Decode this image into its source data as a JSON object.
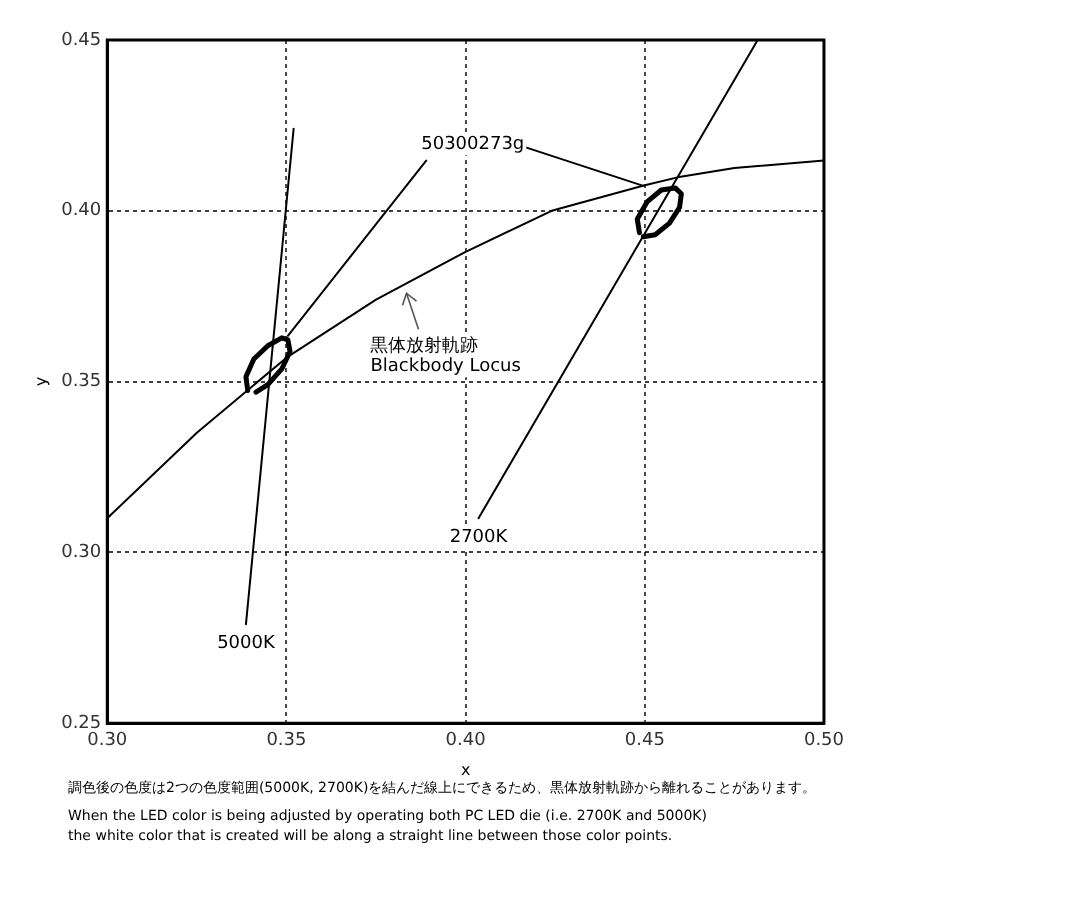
{
  "chart_data": {
    "type": "line",
    "xlabel": "x",
    "ylabel": "y",
    "xlim": [
      0.3,
      0.5
    ],
    "ylim": [
      0.25,
      0.45
    ],
    "xticks": [
      {
        "value": 0.3,
        "label": "0.30"
      },
      0.35,
      {
        "value": 0.4,
        "label": "0.40"
      },
      0.45,
      {
        "value": 0.5,
        "label": "0.50"
      }
    ],
    "yticks": [
      0.25,
      {
        "value": 0.3,
        "label": "0.30"
      },
      0.35,
      {
        "value": 0.4,
        "label": "0.40"
      },
      0.45
    ],
    "grid": true,
    "marker": "none",
    "legend": false,
    "series": [
      {
        "color": "#000000",
        "x": [
          0.3,
          0.325,
          0.35,
          0.375,
          0.4,
          0.424,
          0.45,
          0.46,
          0.475,
          0.5
        ],
        "values": [
          0.31,
          0.335,
          0.357,
          0.374,
          0.388,
          0.4,
          0.4075,
          0.41,
          0.4125,
          0.4147
        ]
      },
      {
        "color": "#000000",
        "x": [
          0.3387,
          0.352
        ],
        "values": [
          0.279,
          0.424
        ]
      },
      {
        "color": "#000000",
        "x": [
          0.4036,
          0.4815
        ],
        "values": [
          0.31,
          0.45
        ]
      },
      {
        "color": "#000000",
        "x": [
          0.389,
          0.3504
        ],
        "values": [
          0.4147,
          0.3634
        ]
      },
      {
        "color": "#000000",
        "x": [
          0.417,
          0.4496
        ],
        "values": [
          0.4185,
          0.4073
        ]
      },
      {
        "color": "#000000",
        "x": [
          0.3392,
          0.3387,
          0.3409,
          0.3448,
          0.3487,
          0.3504,
          0.351,
          0.3487,
          0.3448,
          0.3415
        ],
        "values": [
          0.3474,
          0.3514,
          0.3566,
          0.3605,
          0.3628,
          0.3622,
          0.3588,
          0.3537,
          0.3491,
          0.3469
        ]
      },
      {
        "color": "#000000",
        "x": [
          0.4485,
          0.4479,
          0.4507,
          0.4546,
          0.4585,
          0.4602,
          0.4597,
          0.4569,
          0.4529,
          0.4496
        ],
        "values": [
          0.3936,
          0.3976,
          0.4027,
          0.4061,
          0.4067,
          0.405,
          0.401,
          0.3964,
          0.393,
          0.3924
        ]
      }
    ],
    "annotations": [
      {
        "text": "5000K",
        "x": 0.3387,
        "y": 0.279
      },
      {
        "text": "2700K",
        "x": 0.4036,
        "y": 0.31
      },
      {
        "text": "黒体放射軌跡\nBlackbody Locus",
        "x": 0.3835,
        "y": 0.3788
      },
      "50300273g",
      "調色後の色度は2つの色度範囲(5000K, 2700K)を結んだ線上にできるため、黒体放射軌跡から離れることがあります。",
      "When the LED color is being adjusted by operating both PC LED die (i.e. 2700K and 5000K)",
      "the white color that is created will be along a straight line between those color points."
    ]
  }
}
